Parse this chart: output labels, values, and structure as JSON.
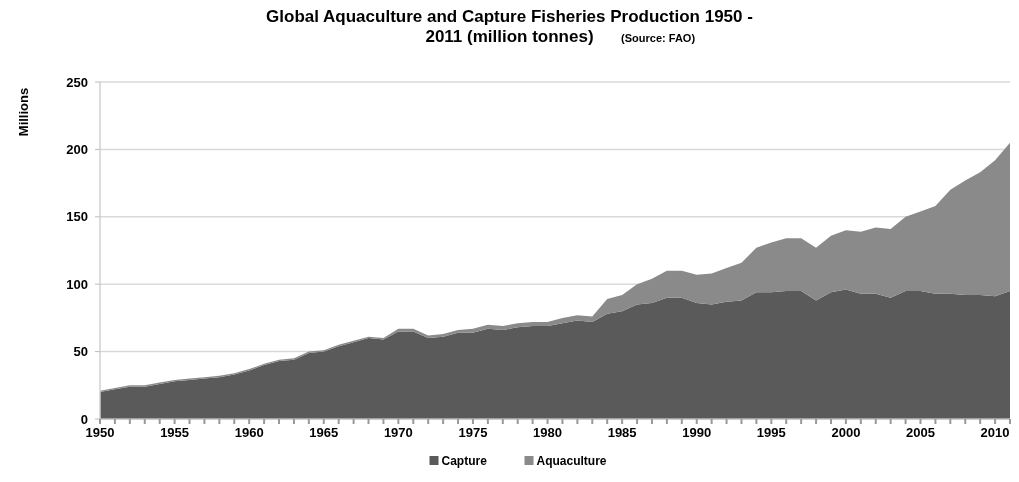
{
  "chart_data": {
    "type": "area",
    "stacked": true,
    "title": "Global Aquaculture and Capture Fisheries Production 1950 - 2011  (million tonnes)",
    "annotations": [
      "(Source: FAO)"
    ],
    "ylabel": "Millions",
    "x": [
      1950,
      1951,
      1952,
      1953,
      1954,
      1955,
      1956,
      1957,
      1958,
      1959,
      1960,
      1961,
      1962,
      1963,
      1964,
      1965,
      1966,
      1967,
      1968,
      1969,
      1970,
      1971,
      1972,
      1973,
      1974,
      1975,
      1976,
      1977,
      1978,
      1979,
      1980,
      1981,
      1982,
      1983,
      1984,
      1985,
      1986,
      1987,
      1988,
      1989,
      1990,
      1991,
      1992,
      1993,
      1994,
      1995,
      1996,
      1997,
      1998,
      1999,
      2000,
      2001,
      2002,
      2003,
      2004,
      2005,
      2006,
      2007,
      2008,
      2009,
      2010,
      2011
    ],
    "series": [
      {
        "name": "Capture",
        "color": "#5a5a5a",
        "values": [
          20,
          22,
          24,
          24,
          26,
          28,
          29,
          30,
          31,
          33,
          36,
          40,
          43,
          44,
          49,
          50,
          54,
          57,
          60,
          59,
          65,
          65,
          60,
          61,
          64,
          64,
          67,
          66,
          68,
          69,
          69,
          71,
          73,
          72,
          78,
          80,
          85,
          86,
          90,
          90,
          86,
          85,
          87,
          88,
          94,
          94,
          95,
          95,
          88,
          94,
          96,
          93,
          93,
          90,
          95,
          95,
          93,
          93,
          92,
          92,
          91,
          95
        ]
      },
      {
        "name": "Aquaculture",
        "color": "#8a8a8a",
        "values": [
          1,
          1,
          1,
          1,
          1,
          1,
          1,
          1,
          1,
          1,
          1,
          1,
          1,
          1,
          1,
          1,
          1,
          1,
          1,
          1,
          2,
          2,
          2,
          2,
          2,
          3,
          3,
          3,
          3,
          3,
          3,
          4,
          4,
          4,
          11,
          12,
          15,
          18,
          20,
          20,
          21,
          23,
          25,
          28,
          33,
          37,
          39,
          39,
          39,
          42,
          44,
          46,
          49,
          51,
          55,
          59,
          65,
          77,
          85,
          91,
          101,
          110
        ]
      }
    ],
    "xlim": [
      1950,
      2011
    ],
    "xticks": [
      1950,
      {
        "value": 1951,
        "label": null
      },
      {
        "value": 1952,
        "label": null
      },
      {
        "value": 1953,
        "label": null
      },
      {
        "value": 1954,
        "label": null
      },
      1955,
      {
        "value": 1956,
        "label": null
      },
      {
        "value": 1957,
        "label": null
      },
      {
        "value": 1958,
        "label": null
      },
      {
        "value": 1959,
        "label": null
      },
      1960,
      {
        "value": 1961,
        "label": null
      },
      {
        "value": 1962,
        "label": null
      },
      {
        "value": 1963,
        "label": null
      },
      {
        "value": 1964,
        "label": null
      },
      1965,
      {
        "value": 1966,
        "label": null
      },
      {
        "value": 1967,
        "label": null
      },
      {
        "value": 1968,
        "label": null
      },
      {
        "value": 1969,
        "label": null
      },
      1970,
      {
        "value": 1971,
        "label": null
      },
      {
        "value": 1972,
        "label": null
      },
      {
        "value": 1973,
        "label": null
      },
      {
        "value": 1974,
        "label": null
      },
      1975,
      {
        "value": 1976,
        "label": null
      },
      {
        "value": 1977,
        "label": null
      },
      {
        "value": 1978,
        "label": null
      },
      {
        "value": 1979,
        "label": null
      },
      1980,
      {
        "value": 1981,
        "label": null
      },
      {
        "value": 1982,
        "label": null
      },
      {
        "value": 1983,
        "label": null
      },
      {
        "value": 1984,
        "label": null
      },
      1985,
      {
        "value": 1986,
        "label": null
      },
      {
        "value": 1987,
        "label": null
      },
      {
        "value": 1988,
        "label": null
      },
      {
        "value": 1989,
        "label": null
      },
      1990,
      {
        "value": 1991,
        "label": null
      },
      {
        "value": 1992,
        "label": null
      },
      {
        "value": 1993,
        "label": null
      },
      {
        "value": 1994,
        "label": null
      },
      1995,
      {
        "value": 1996,
        "label": null
      },
      {
        "value": 1997,
        "label": null
      },
      {
        "value": 1998,
        "label": null
      },
      {
        "value": 1999,
        "label": null
      },
      2000,
      {
        "value": 2001,
        "label": null
      },
      {
        "value": 2002,
        "label": null
      },
      {
        "value": 2003,
        "label": null
      },
      {
        "value": 2004,
        "label": null
      },
      2005,
      {
        "value": 2006,
        "label": null
      },
      {
        "value": 2007,
        "label": null
      },
      {
        "value": 2008,
        "label": null
      },
      {
        "value": 2009,
        "label": null
      },
      2010,
      {
        "value": 2011,
        "label": null
      }
    ],
    "ylim": [
      0,
      250
    ],
    "yticks": [
      0,
      50,
      100,
      150,
      200,
      250
    ],
    "grid": "y",
    "legend": "bottom"
  }
}
